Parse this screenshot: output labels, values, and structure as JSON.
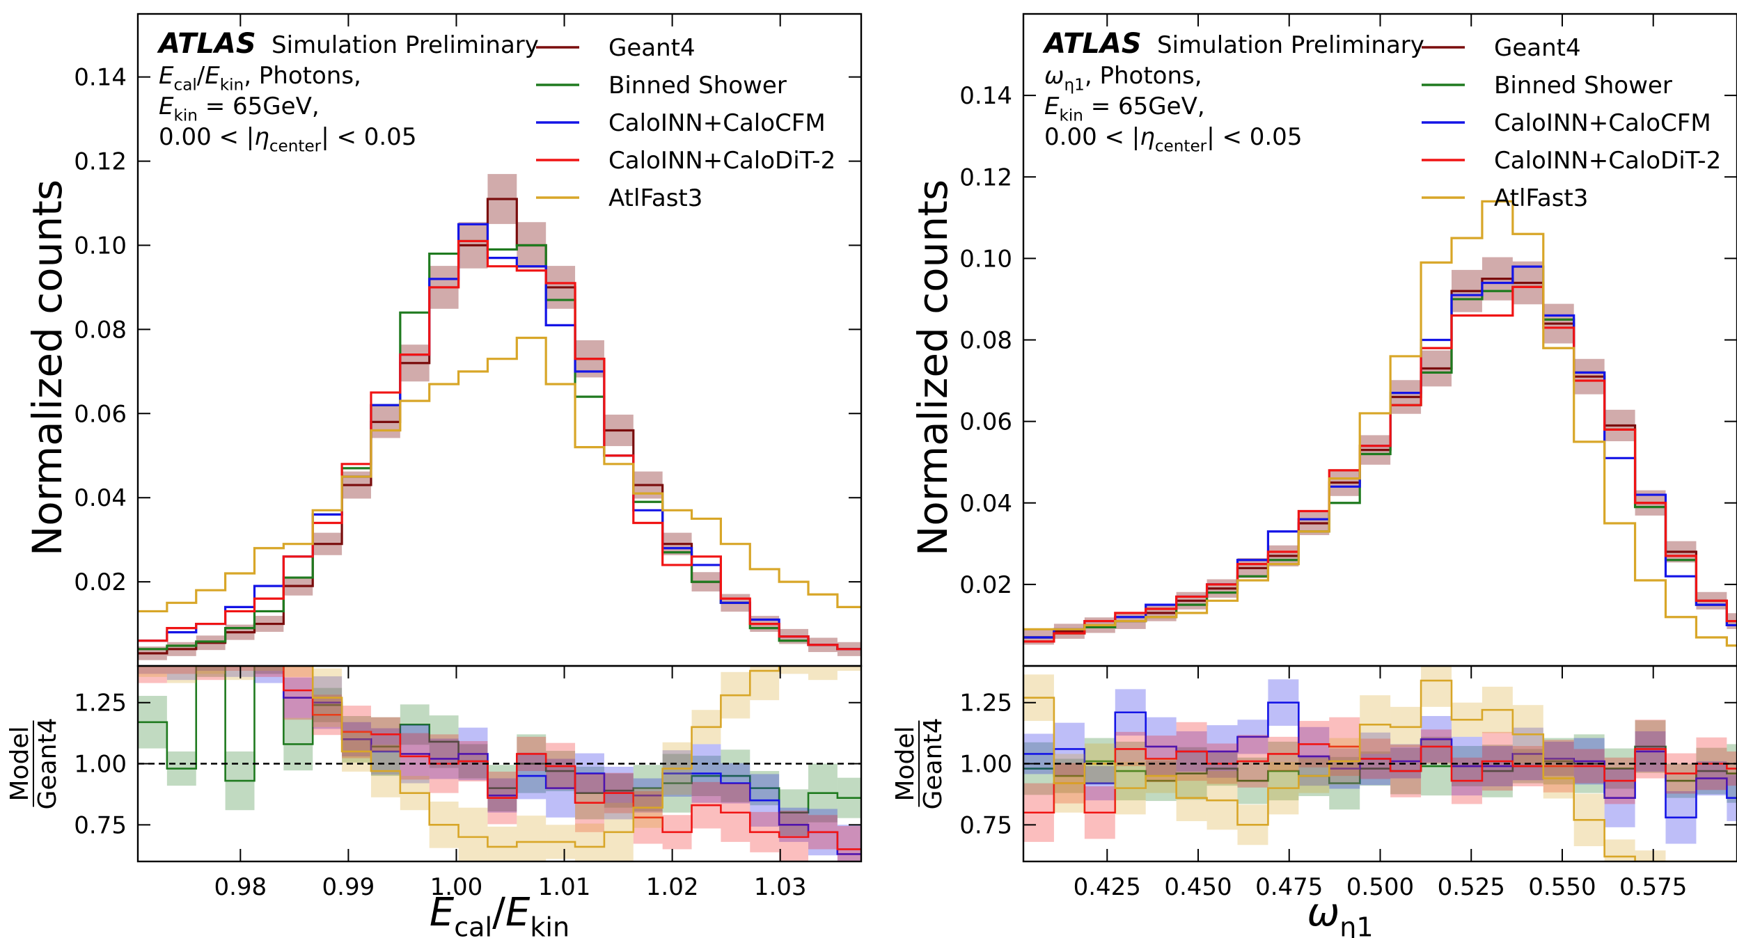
{
  "colors": {
    "Geant4": "#7a0d0d",
    "Binned Shower": "#1f7a1f",
    "CaloINN+CaloCFM": "#1414e6",
    "CaloINN+CaloDiT-2": "#f01414",
    "AtlFast3": "#d8a628"
  },
  "chart_data": [
    {
      "type": "line",
      "step": true,
      "title": "",
      "atlas_label": "ATLAS",
      "atlas_sub": "Simulation Preliminary",
      "info_lines": [
        "E_cal/E_kin, Photons,",
        "E_kin = 65GeV,",
        "0.00 < |η_center| < 0.05"
      ],
      "xlabel": "E_cal/E_kin",
      "ylabel": "Normalized counts",
      "ratio_ylabel_num": "Model",
      "ratio_ylabel_den": "Geant4",
      "xlim": [
        0.9705,
        1.0375
      ],
      "ylim": [
        0.0,
        0.155
      ],
      "ratio_ylim": [
        0.6,
        1.4
      ],
      "xticks": [
        0.98,
        0.99,
        1.0,
        1.01,
        1.02,
        1.03
      ],
      "xtick_labels": [
        "0.98",
        "0.99",
        "1.00",
        "1.01",
        "1.02",
        "1.03"
      ],
      "yticks": [
        0.02,
        0.04,
        0.06,
        0.08,
        0.1,
        0.12,
        0.14
      ],
      "ytick_labels": [
        "0.02",
        "0.04",
        "0.06",
        "0.08",
        "0.10",
        "0.12",
        "0.14"
      ],
      "ratio_yticks": [
        0.75,
        1.0,
        1.25
      ],
      "ratio_ytick_labels": [
        "0.75",
        "1.00",
        "1.25"
      ],
      "legend_position": "top-right",
      "grid": false,
      "bin_edges": [
        0.9705,
        0.9732,
        0.9759,
        0.9786,
        0.9813,
        0.984,
        0.9867,
        0.9894,
        0.9921,
        0.9948,
        0.9975,
        1.0002,
        1.0029,
        1.0056,
        1.0083,
        1.011,
        1.0137,
        1.0164,
        1.0191,
        1.0218,
        1.0245,
        1.0272,
        1.0299,
        1.0326,
        1.0353,
        1.038
      ],
      "series": [
        {
          "name": "Geant4",
          "band": true,
          "values": [
            0.003,
            0.004,
            0.0055,
            0.008,
            0.01,
            0.019,
            0.029,
            0.043,
            0.058,
            0.072,
            0.09,
            0.1,
            0.111,
            0.1,
            0.09,
            0.073,
            0.056,
            0.043,
            0.029,
            0.02,
            0.015,
            0.01,
            0.007,
            0.005,
            0.004
          ],
          "ratio": [
            1.0,
            1.0,
            1.0,
            1.0,
            1.0,
            1.0,
            1.0,
            1.0,
            1.0,
            1.0,
            1.0,
            1.0,
            1.0,
            1.0,
            1.0,
            1.0,
            1.0,
            1.0,
            1.0,
            1.0,
            1.0,
            1.0,
            1.0,
            1.0,
            1.0
          ]
        },
        {
          "name": "Binned Shower",
          "band": true,
          "values": [
            0.004,
            0.0048,
            0.0058,
            0.009,
            0.013,
            0.021,
            0.036,
            0.047,
            0.062,
            0.084,
            0.098,
            0.101,
            0.099,
            0.1,
            0.087,
            0.064,
            0.05,
            0.039,
            0.027,
            0.02,
            0.015,
            0.009,
            0.006,
            0.005,
            0.004
          ],
          "ratio": [
            1.17,
            0.98,
            1.45,
            0.93,
            1.45,
            1.08,
            1.24,
            1.1,
            1.07,
            1.16,
            1.09,
            1.01,
            0.9,
            1.0,
            0.97,
            0.88,
            0.89,
            0.9,
            0.92,
            0.95,
            0.95,
            0.9,
            0.8,
            0.88,
            0.86
          ]
        },
        {
          "name": "CaloINN+CaloCFM",
          "band": true,
          "values": [
            0.006,
            0.008,
            0.01,
            0.014,
            0.019,
            0.026,
            0.036,
            0.045,
            0.062,
            0.074,
            0.092,
            0.105,
            0.097,
            0.095,
            0.081,
            0.07,
            0.05,
            0.037,
            0.028,
            0.024,
            0.015,
            0.011,
            0.007,
            0.005,
            0.004
          ],
          "ratio": [
            1.45,
            1.45,
            1.45,
            1.45,
            1.45,
            1.27,
            1.25,
            1.1,
            1.05,
            1.04,
            1.02,
            1.04,
            0.87,
            0.95,
            0.9,
            0.96,
            0.88,
            0.87,
            0.96,
            0.96,
            0.92,
            0.85,
            0.75,
            0.72,
            0.63
          ]
        },
        {
          "name": "CaloINN+CaloDiT-2",
          "band": true,
          "values": [
            0.006,
            0.009,
            0.01,
            0.013,
            0.016,
            0.026,
            0.034,
            0.048,
            0.065,
            0.074,
            0.09,
            0.101,
            0.095,
            0.094,
            0.091,
            0.073,
            0.05,
            0.034,
            0.024,
            0.026,
            0.016,
            0.01,
            0.007,
            0.005,
            0.004
          ],
          "ratio": [
            1.45,
            1.45,
            1.45,
            1.45,
            1.45,
            1.3,
            1.2,
            1.13,
            1.12,
            1.03,
            1.0,
            1.01,
            0.86,
            1.04,
            0.99,
            0.84,
            0.88,
            0.78,
            0.72,
            0.83,
            0.8,
            0.72,
            0.7,
            0.72,
            0.65
          ]
        },
        {
          "name": "AtlFast3",
          "band": true,
          "values": [
            0.013,
            0.015,
            0.018,
            0.022,
            0.028,
            0.029,
            0.037,
            0.045,
            0.056,
            0.063,
            0.067,
            0.07,
            0.073,
            0.078,
            0.067,
            0.052,
            0.048,
            0.041,
            0.037,
            0.035,
            0.029,
            0.023,
            0.02,
            0.017,
            0.014
          ],
          "ratio": [
            1.45,
            1.45,
            1.45,
            1.45,
            1.45,
            1.45,
            1.27,
            1.05,
            0.97,
            0.88,
            0.75,
            0.7,
            0.66,
            0.68,
            0.68,
            0.66,
            0.72,
            0.82,
            0.98,
            1.15,
            1.28,
            1.38,
            1.45,
            1.45,
            1.45
          ]
        }
      ]
    },
    {
      "type": "line",
      "step": true,
      "title": "",
      "atlas_label": "ATLAS",
      "atlas_sub": "Simulation Preliminary",
      "info_lines": [
        "ω_η1, Photons,",
        "E_kin = 65GeV,",
        "0.00 < |η_center| < 0.05"
      ],
      "xlabel": "ω_η1",
      "ylabel": "Normalized counts",
      "ratio_ylabel_num": "Model",
      "ratio_ylabel_den": "Geant4",
      "xlim": [
        0.402,
        0.598
      ],
      "ylim": [
        0.0,
        0.16
      ],
      "ratio_ylim": [
        0.6,
        1.4
      ],
      "xticks": [
        0.425,
        0.45,
        0.475,
        0.5,
        0.525,
        0.55,
        0.575
      ],
      "xtick_labels": [
        "0.425",
        "0.450",
        "0.475",
        "0.500",
        "0.525",
        "0.550",
        "0.575"
      ],
      "yticks": [
        0.02,
        0.04,
        0.06,
        0.08,
        0.1,
        0.12,
        0.14
      ],
      "ytick_labels": [
        "0.02",
        "0.04",
        "0.06",
        "0.08",
        "0.10",
        "0.12",
        "0.14"
      ],
      "ratio_yticks": [
        0.75,
        1.0,
        1.25
      ],
      "ratio_ytick_labels": [
        "0.75",
        "1.00",
        "1.25"
      ],
      "legend_position": "top-right",
      "grid": false,
      "bin_edges": [
        0.402,
        0.4104,
        0.4188,
        0.4272,
        0.4356,
        0.444,
        0.4524,
        0.4608,
        0.4692,
        0.4776,
        0.486,
        0.4944,
        0.5028,
        0.5112,
        0.5196,
        0.528,
        0.5364,
        0.5448,
        0.5532,
        0.5616,
        0.57,
        0.5784,
        0.5868,
        0.5952,
        0.6036
      ],
      "series": [
        {
          "name": "Geant4",
          "band": true,
          "values": [
            0.007,
            0.0085,
            0.01,
            0.011,
            0.013,
            0.016,
            0.019,
            0.024,
            0.027,
            0.035,
            0.045,
            0.053,
            0.066,
            0.073,
            0.092,
            0.095,
            0.094,
            0.084,
            0.071,
            0.059,
            0.04,
            0.028,
            0.016,
            0.011
          ],
          "ratio": [
            1.0,
            1.0,
            1.0,
            1.0,
            1.0,
            1.0,
            1.0,
            1.0,
            1.0,
            1.0,
            1.0,
            1.0,
            1.0,
            1.0,
            1.0,
            1.0,
            1.0,
            1.0,
            1.0,
            1.0,
            1.0,
            1.0,
            1.0,
            1.0
          ]
        },
        {
          "name": "Binned Shower",
          "band": true,
          "values": [
            0.007,
            0.008,
            0.0095,
            0.011,
            0.012,
            0.015,
            0.018,
            0.022,
            0.026,
            0.033,
            0.04,
            0.052,
            0.064,
            0.072,
            0.09,
            0.092,
            0.093,
            0.085,
            0.072,
            0.058,
            0.039,
            0.026,
            0.015,
            0.01
          ],
          "ratio": [
            0.98,
            0.95,
            1.01,
            0.97,
            0.93,
            0.96,
            0.98,
            0.93,
            0.97,
            0.95,
            0.92,
            0.98,
            0.97,
            0.99,
            0.99,
            0.97,
            0.99,
            1.01,
            1.0,
            0.98,
            1.07,
            0.93,
            0.97,
            0.96
          ]
        },
        {
          "name": "CaloINN+CaloCFM",
          "band": true,
          "values": [
            0.007,
            0.009,
            0.011,
            0.012,
            0.015,
            0.017,
            0.02,
            0.026,
            0.033,
            0.036,
            0.044,
            0.054,
            0.067,
            0.08,
            0.091,
            0.094,
            0.098,
            0.086,
            0.072,
            0.051,
            0.042,
            0.022,
            0.015,
            0.01
          ],
          "ratio": [
            1.04,
            1.06,
            0.92,
            1.21,
            1.07,
            1.05,
            1.05,
            1.11,
            1.25,
            1.03,
            0.98,
            1.02,
            1.01,
            1.1,
            0.99,
            0.99,
            1.04,
            1.02,
            1.01,
            0.86,
            1.05,
            0.78,
            0.94,
            0.86
          ]
        },
        {
          "name": "CaloINN+CaloDiT-2",
          "band": true,
          "values": [
            0.006,
            0.008,
            0.011,
            0.013,
            0.014,
            0.017,
            0.02,
            0.025,
            0.028,
            0.038,
            0.048,
            0.054,
            0.064,
            0.078,
            0.086,
            0.086,
            0.093,
            0.083,
            0.07,
            0.058,
            0.04,
            0.027,
            0.016,
            0.011
          ],
          "ratio": [
            0.8,
            0.92,
            0.8,
            1.06,
            1.02,
            1.05,
            1.0,
            1.01,
            1.04,
            1.08,
            1.07,
            1.02,
            0.97,
            1.07,
            0.93,
            1.01,
            0.99,
            0.99,
            0.99,
            0.93,
            1.06,
            0.96,
            1.0,
            0.98
          ]
        },
        {
          "name": "AtlFast3",
          "band": true,
          "values": [
            0.009,
            0.009,
            0.01,
            0.011,
            0.012,
            0.013,
            0.016,
            0.021,
            0.025,
            0.033,
            0.046,
            0.062,
            0.076,
            0.099,
            0.105,
            0.114,
            0.106,
            0.078,
            0.055,
            0.035,
            0.021,
            0.012,
            0.007,
            0.005
          ],
          "ratio": [
            1.27,
            0.92,
            1.0,
            0.9,
            0.95,
            0.86,
            0.85,
            0.75,
            0.9,
            0.95,
            1.01,
            1.16,
            1.15,
            1.34,
            1.18,
            1.22,
            1.12,
            0.94,
            0.77,
            0.62,
            0.55,
            0.44,
            0.45,
            0.45
          ]
        }
      ]
    }
  ]
}
